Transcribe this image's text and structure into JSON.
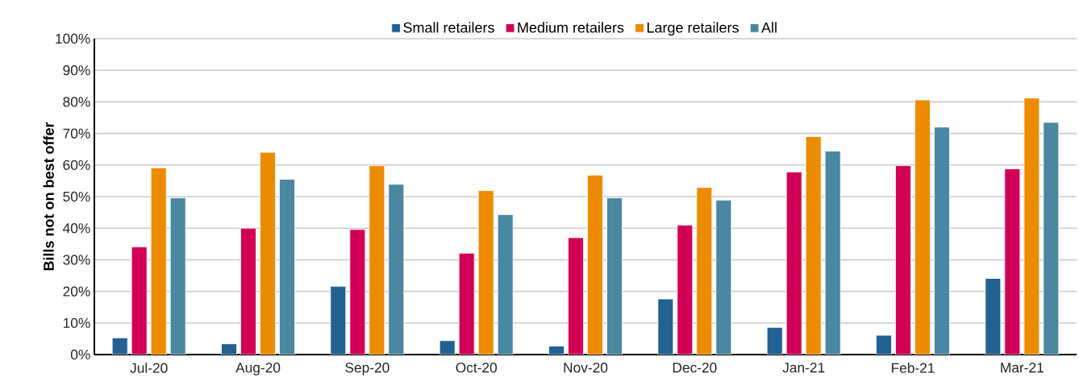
{
  "chart_data": {
    "type": "bar",
    "ylabel": "Bills not on best offer",
    "categories": [
      "Jul-20",
      "Aug-20",
      "Sep-20",
      "Oct-20",
      "Nov-20",
      "Dec-20",
      "Jan-21",
      "Feb-21",
      "Mar-21"
    ],
    "series": [
      {
        "name": "Small retailers",
        "color": "#236192",
        "values": [
          5.3,
          3.4,
          21.6,
          4.4,
          2.7,
          17.6,
          8.6,
          6.1,
          24.1
        ]
      },
      {
        "name": "Medium retailers",
        "color": "#d10056",
        "values": [
          34.1,
          40.0,
          39.6,
          32.1,
          37.0,
          41.0,
          57.8,
          59.8,
          58.8
        ]
      },
      {
        "name": "Large retailers",
        "color": "#ed8b00",
        "values": [
          59.1,
          64.0,
          59.8,
          51.9,
          56.8,
          52.9,
          69.0,
          80.6,
          81.2
        ]
      },
      {
        "name": "All",
        "color": "#4a87a1",
        "values": [
          49.6,
          55.5,
          53.9,
          44.3,
          49.6,
          48.9,
          64.4,
          72.0,
          73.5
        ]
      }
    ],
    "ylim": [
      0,
      100
    ],
    "yticks": [
      {
        "value": 0,
        "label": "0%"
      },
      {
        "value": 10,
        "label": "10%"
      },
      {
        "value": 20,
        "label": "20%"
      },
      {
        "value": 30,
        "label": "30%"
      },
      {
        "value": 40,
        "label": "40%"
      },
      {
        "value": 50,
        "label": "50%"
      },
      {
        "value": 60,
        "label": "60%"
      },
      {
        "value": 70,
        "label": "70%"
      },
      {
        "value": 80,
        "label": "80%"
      },
      {
        "value": 90,
        "label": "90%"
      },
      {
        "value": 100,
        "label": "100%"
      }
    ],
    "grid": "y",
    "legend": "top"
  }
}
